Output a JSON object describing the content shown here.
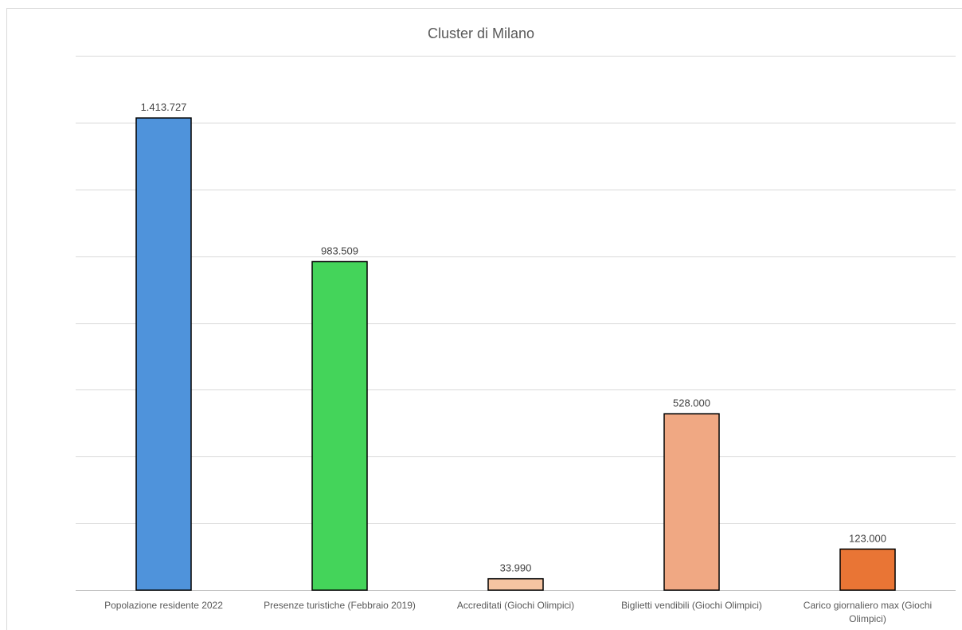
{
  "chart_data": {
    "type": "bar",
    "title": "Cluster di Milano",
    "xlabel": "",
    "ylabel": "",
    "categories": [
      "Popolazione residente 2022",
      "Presenze turistiche (Febbraio 2019)",
      "Accreditati (Giochi Olimpici)",
      "Biglietti vendibili (Giochi Olimpici)",
      "Carico giornaliero max (Giochi Olimpici)"
    ],
    "values": [
      1413727,
      983509,
      33990,
      528000,
      123000
    ],
    "data_labels": [
      "1.413.727",
      "983.509",
      "33.990",
      "528.000",
      "123.000"
    ],
    "colors": [
      "#4f93db",
      "#44d45a",
      "#f6c4a2",
      "#f0a883",
      "#e97535"
    ],
    "ylim": [
      0,
      1600000
    ],
    "grid": true,
    "legend": "none"
  }
}
